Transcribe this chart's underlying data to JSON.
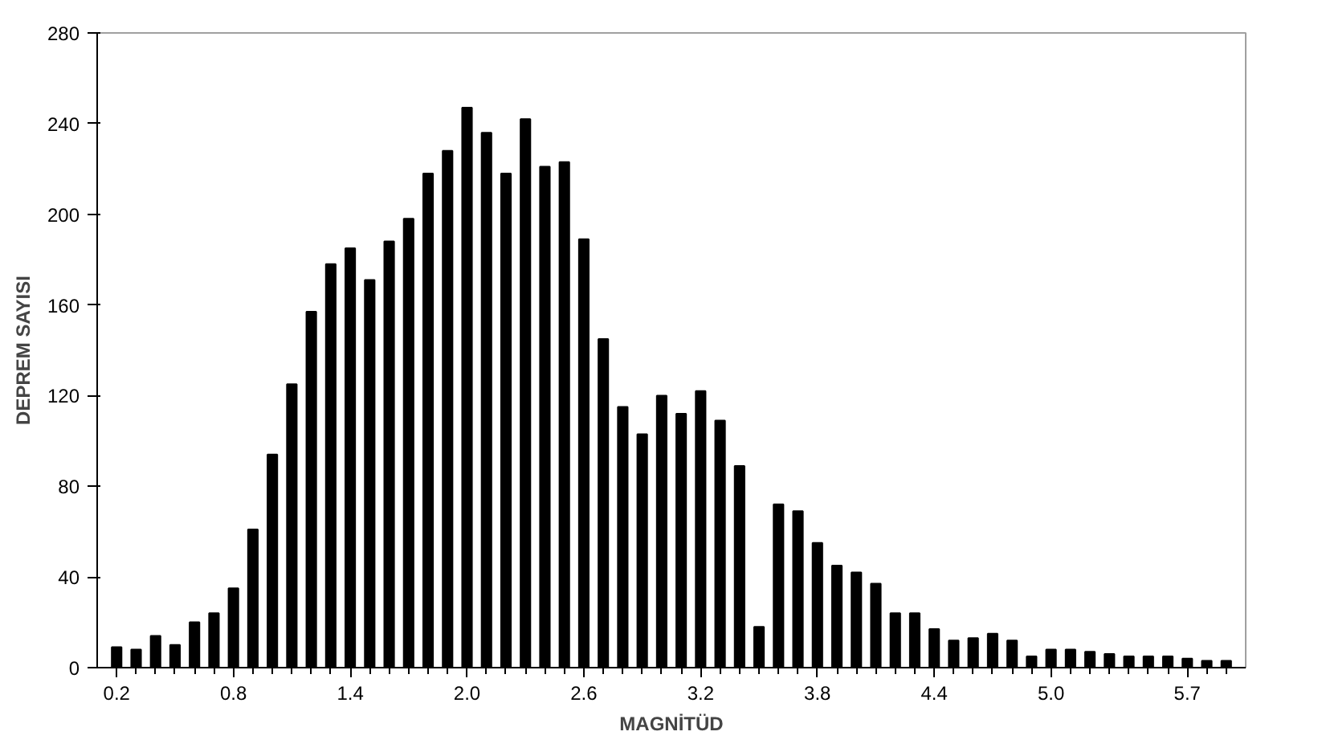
{
  "chart_data": {
    "type": "bar",
    "xlabel": "MAGNİTÜD",
    "ylabel": "DEPREM SAYISI",
    "categories": [
      "0.2",
      null,
      null,
      null,
      null,
      null,
      "0.8",
      null,
      null,
      null,
      null,
      null,
      "1.4",
      null,
      null,
      null,
      null,
      null,
      "2.0",
      null,
      null,
      null,
      null,
      null,
      "2.6",
      null,
      null,
      null,
      null,
      null,
      "3.2",
      null,
      null,
      null,
      null,
      null,
      "3.8",
      null,
      null,
      null,
      null,
      null,
      "4.4",
      null,
      null,
      null,
      null,
      null,
      "5.0",
      null,
      null,
      null,
      null,
      null,
      null,
      "5.7",
      null,
      null
    ],
    "values": [
      9,
      8,
      14,
      10,
      20,
      24,
      35,
      61,
      94,
      125,
      157,
      178,
      185,
      171,
      188,
      198,
      218,
      228,
      247,
      236,
      218,
      242,
      221,
      223,
      189,
      145,
      115,
      103,
      120,
      112,
      122,
      109,
      89,
      18,
      72,
      69,
      55,
      45,
      42,
      37,
      24,
      24,
      17,
      12,
      13,
      15,
      12,
      5,
      8,
      8,
      7,
      6,
      5,
      5,
      5,
      4,
      3,
      3
    ],
    "color": "#000000",
    "ylim": [
      0,
      280
    ],
    "yticks": [
      0,
      40,
      80,
      120,
      160,
      200,
      240,
      280
    ],
    "grid": false
  }
}
